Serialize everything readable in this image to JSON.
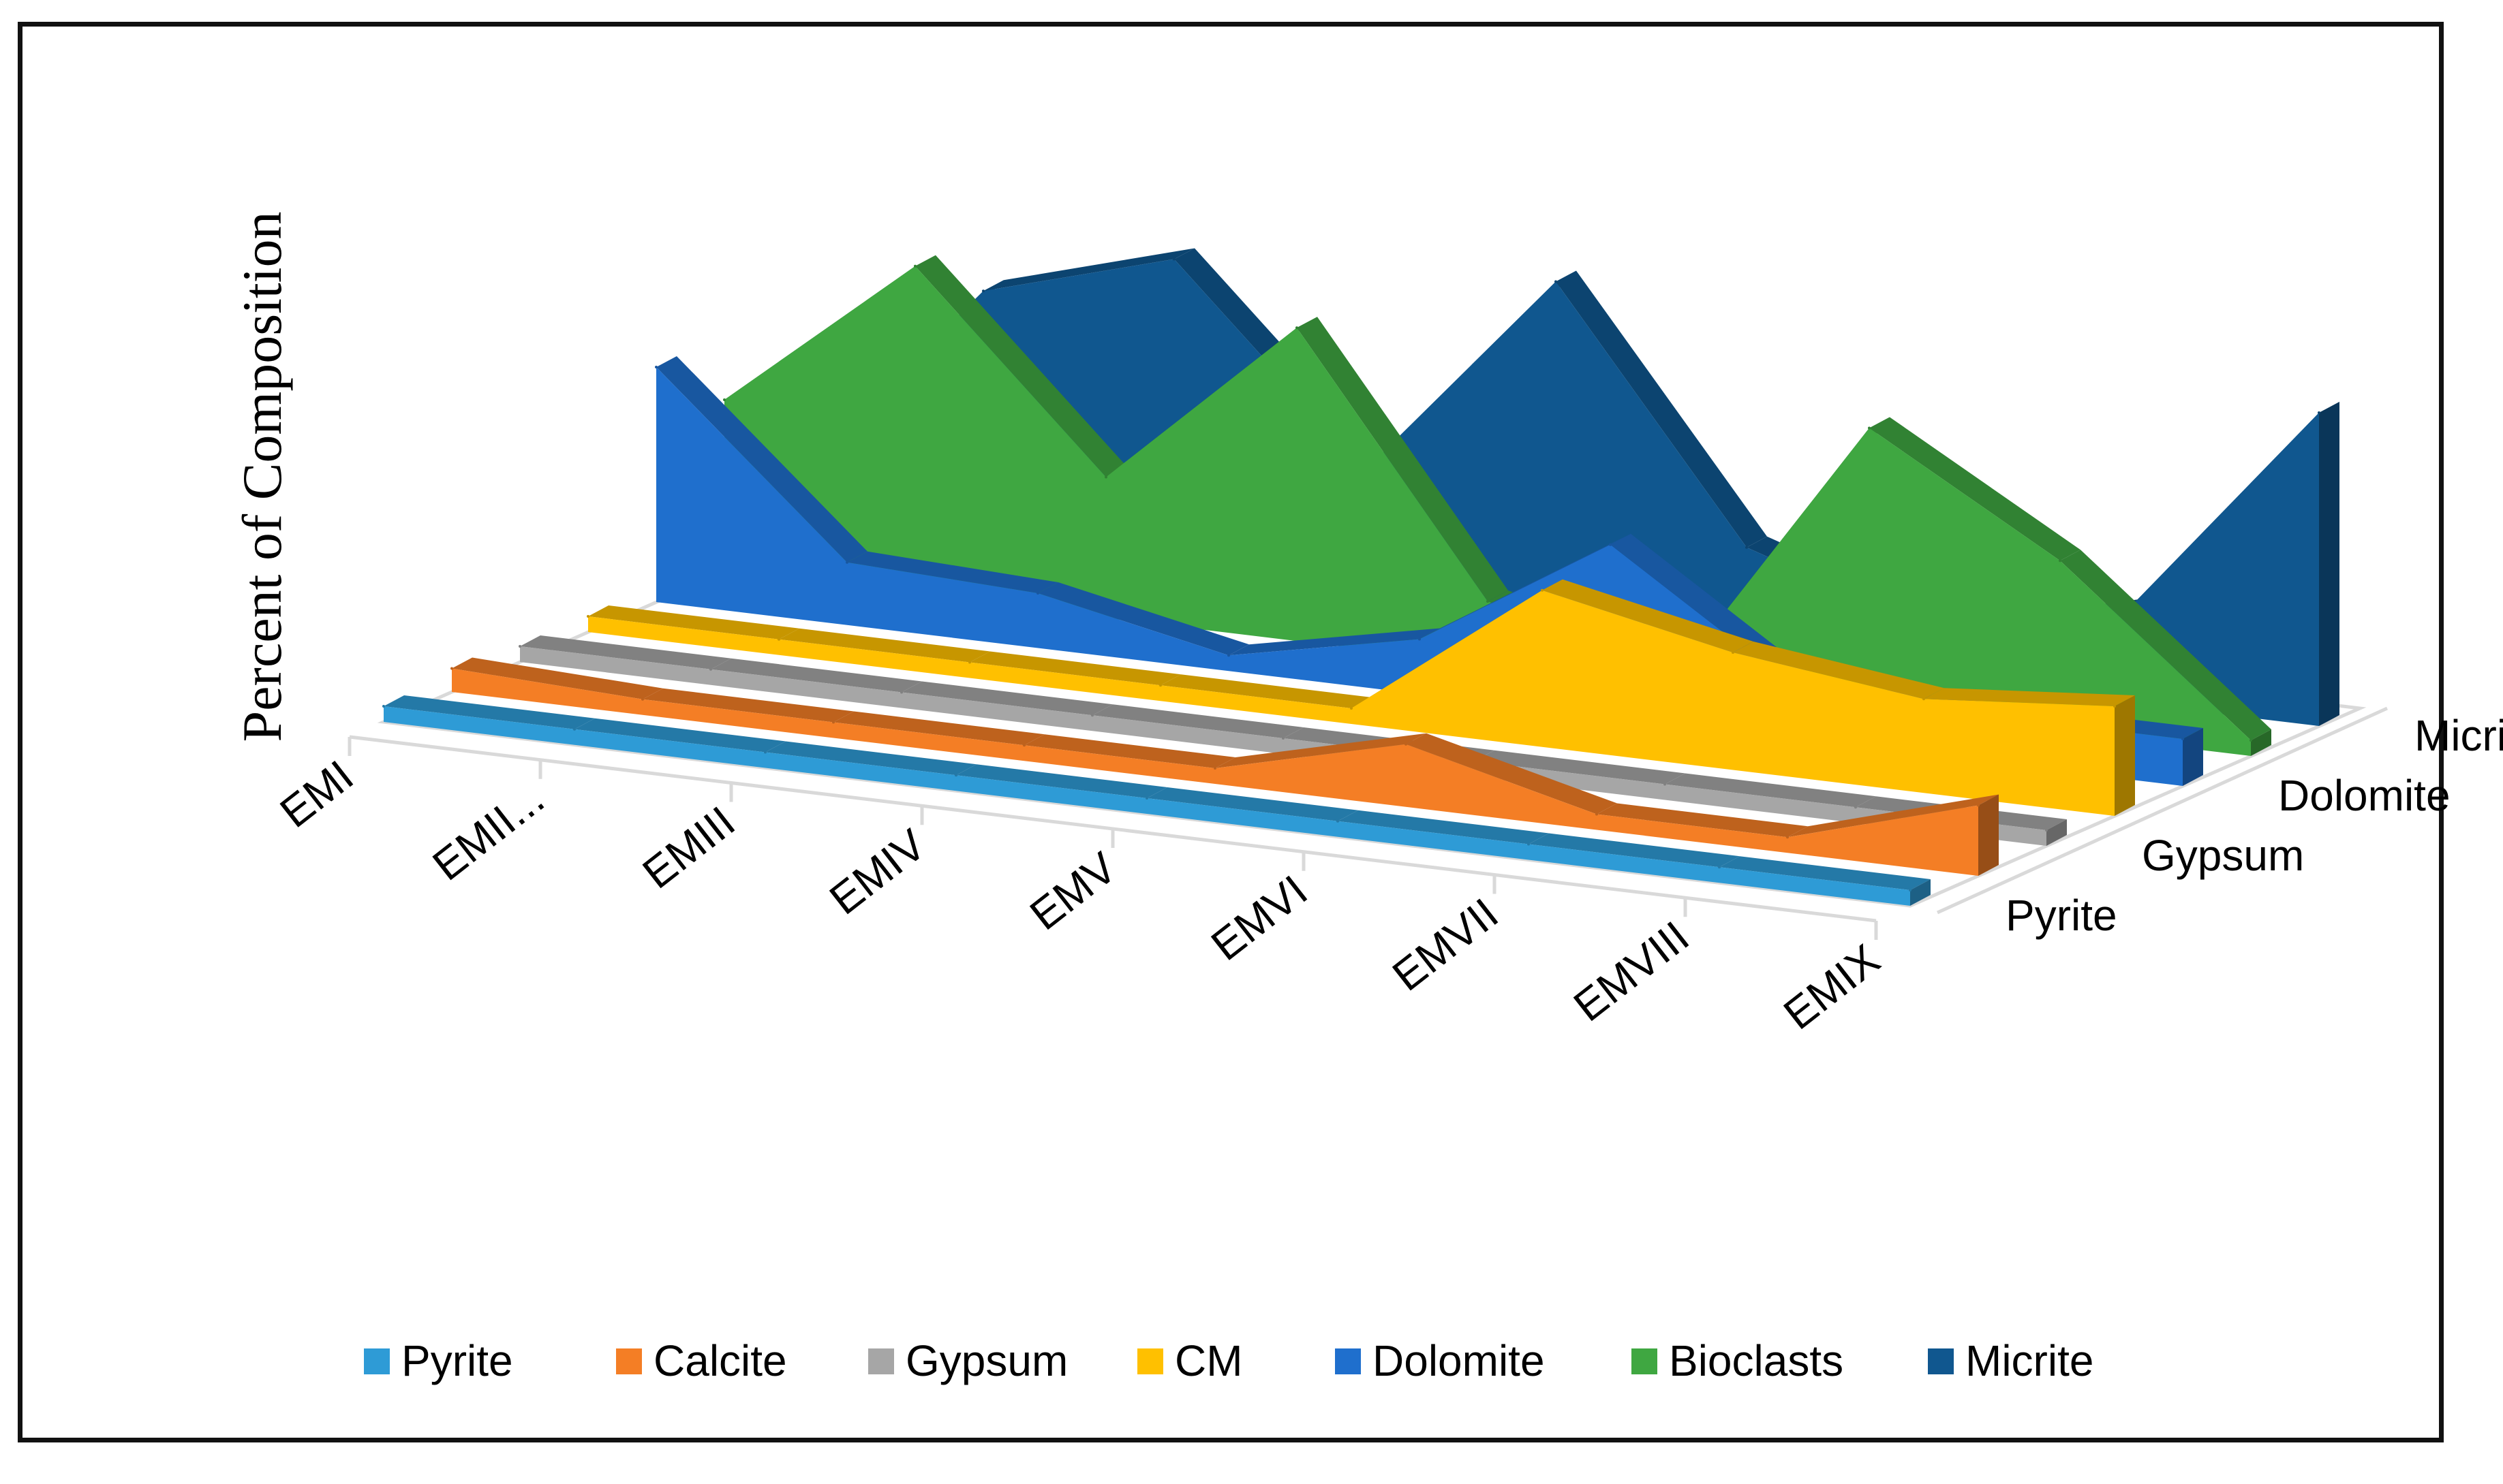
{
  "chart_data": {
    "type": "area",
    "subtype": "3d-area",
    "title": "",
    "ylabel": "Percent of Composition",
    "xlabel": "",
    "categories": [
      "EMI",
      "EMII...",
      "EMIII",
      "EMIV",
      "EMV",
      "EMVI",
      "EMVII",
      "EMVIII",
      "EMIX"
    ],
    "depth_labels": [
      "Pyrite",
      "Gypsum",
      "Dolomite",
      "Micrite"
    ],
    "ylim": [
      0,
      100
    ],
    "series": [
      {
        "name": "Pyrite",
        "color": "#2E9BD6",
        "values": [
          2,
          2,
          2,
          2,
          2,
          2,
          2,
          2,
          2
        ]
      },
      {
        "name": "Calcite",
        "color": "#F47E25",
        "values": [
          3,
          2,
          2,
          2,
          2,
          8,
          2,
          2,
          9
        ]
      },
      {
        "name": "Gypsum",
        "color": "#A6A6A6",
        "values": [
          2,
          2,
          2,
          2,
          2,
          2,
          2,
          2,
          2
        ]
      },
      {
        "name": "CM",
        "color": "#FFC000",
        "values": [
          2,
          2,
          2,
          2,
          2,
          20,
          15,
          12,
          14
        ]
      },
      {
        "name": "Dolomite",
        "color": "#1F6FCD",
        "values": [
          30,
          8,
          7,
          2,
          7,
          22,
          6,
          6,
          6
        ]
      },
      {
        "name": "Bioclasts",
        "color": "#3FA741",
        "values": [
          22,
          42,
          18,
          40,
          8,
          2,
          36,
          22,
          2
        ]
      },
      {
        "name": "Micrite",
        "color": "#10578F",
        "values": [
          8,
          35,
          42,
          18,
          45,
          14,
          6,
          12,
          40
        ]
      }
    ],
    "legend": [
      "Pyrite",
      "Calcite",
      "Gypsum",
      "CM",
      "Dolomite",
      "Bioclasts",
      "Micrite"
    ],
    "legend_position": "bottom"
  }
}
